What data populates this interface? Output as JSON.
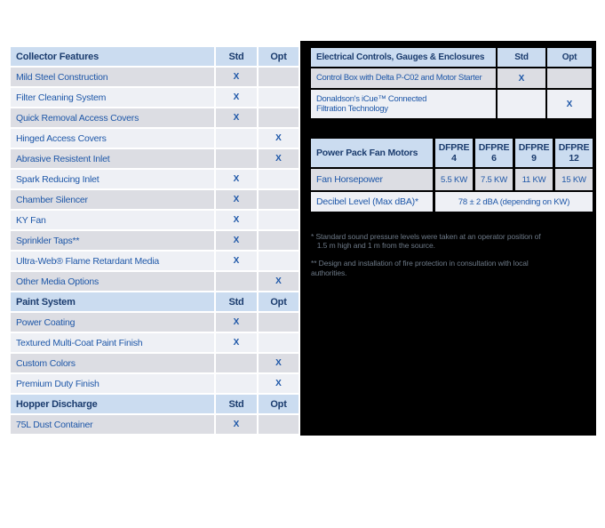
{
  "colors": {
    "header_bg": "#cbdcf0",
    "row_gray": "#dcdde3",
    "row_light": "#eef0f5",
    "heading_text": "#1b3c6e",
    "body_text": "#1e57a8",
    "panel_bg": "#000000",
    "footnote_text": "#6d7987"
  },
  "left_tables": {
    "std_label": "Std",
    "opt_label": "Opt",
    "sections": [
      {
        "title": "Collector Features",
        "rows": [
          {
            "label": "Mild Steel Construction",
            "std": "X",
            "opt": ""
          },
          {
            "label": "Filter Cleaning System",
            "std": "X",
            "opt": ""
          },
          {
            "label": "Quick Removal Access Covers",
            "std": "X",
            "opt": ""
          },
          {
            "label": "Hinged Access Covers",
            "std": "",
            "opt": "X"
          },
          {
            "label": "Abrasive Resistent Inlet",
            "std": "",
            "opt": "X"
          },
          {
            "label": "Spark Reducing Inlet",
            "std": "X",
            "opt": ""
          },
          {
            "label": "Chamber Silencer",
            "std": "X",
            "opt": ""
          },
          {
            "label": "KY Fan",
            "std": "X",
            "opt": ""
          },
          {
            "label": "Sprinkler Taps**",
            "std": "X",
            "opt": ""
          },
          {
            "label": "Ultra-Web® Flame Retardant Media",
            "std": "X",
            "opt": ""
          },
          {
            "label": "Other Media Options",
            "std": "",
            "opt": "X"
          }
        ]
      },
      {
        "title": "Paint System",
        "rows": [
          {
            "label": "Power Coating",
            "std": "X",
            "opt": ""
          },
          {
            "label": "Textured Multi-Coat Paint Finish",
            "std": "X",
            "opt": ""
          },
          {
            "label": "Custom Colors",
            "std": "",
            "opt": "X"
          },
          {
            "label": "Premium Duty Finish",
            "std": "",
            "opt": "X"
          }
        ]
      },
      {
        "title": "Hopper Discharge",
        "rows": [
          {
            "label": "75L Dust Container",
            "std": "X",
            "opt": ""
          }
        ]
      }
    ]
  },
  "electrical_table": {
    "title": "Electrical Controls, Gauges & Enclosures",
    "std_label": "Std",
    "opt_label": "Opt",
    "rows": [
      {
        "label": "Control Box with Delta P-C02 and Motor Starter",
        "std": "X",
        "opt": ""
      },
      {
        "label": "Donaldson's iCue™ Connected\nFiltration Technology",
        "std": "",
        "opt": "X"
      }
    ]
  },
  "fan_table": {
    "title": "Power Pack Fan Motors",
    "columns": [
      {
        "family": "DFPRE",
        "model": "4"
      },
      {
        "family": "DFPRE",
        "model": "6"
      },
      {
        "family": "DFPRE",
        "model": "9"
      },
      {
        "family": "DFPRE",
        "model": "12"
      }
    ],
    "rows": [
      {
        "label": "Fan Horsepower",
        "values": [
          "5.5 KW",
          "7.5 KW",
          "11 KW",
          "15 KW"
        ]
      }
    ],
    "merged_row": {
      "label": "Decibel Level (Max dBA)*",
      "value": "78 ± 2 dBA (depending on KW)"
    }
  },
  "footnotes": [
    "* Standard sound pressure levels were taken at an operator position of\n   1.5 m high and 1 m from the source.",
    "** Design and installation of fire protection in consultation with local\nauthorities."
  ]
}
